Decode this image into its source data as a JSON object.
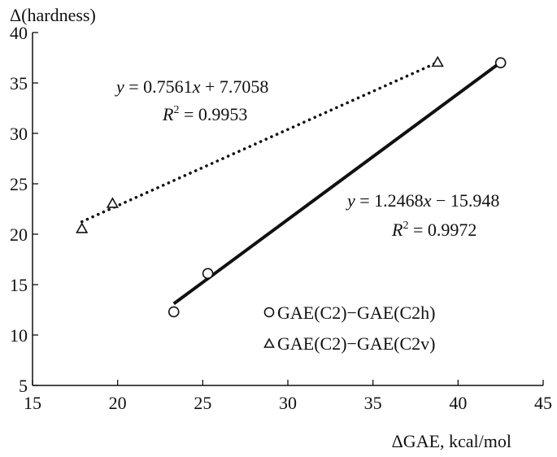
{
  "chart_data": {
    "type": "scatter",
    "xlabel": "ΔGAE, kcal/mol",
    "ylabel": "Δ(hardness)",
    "xlim": [
      15,
      45
    ],
    "ylim": [
      5,
      40
    ],
    "xticks": [
      15,
      20,
      25,
      30,
      35,
      40,
      45
    ],
    "yticks": [
      5,
      10,
      15,
      20,
      25,
      30,
      35,
      40
    ],
    "grid": false,
    "legend_position": "bottom-right",
    "series": [
      {
        "name": "GAE(C2)−GAE(C2h)",
        "marker": "circle",
        "line_style": "solid",
        "color": "#111111",
        "points": [
          {
            "x": 23.3,
            "y": 12.3
          },
          {
            "x": 25.3,
            "y": 16.1
          },
          {
            "x": 42.5,
            "y": 37.0
          }
        ],
        "fit_line": {
          "slope": 1.2468,
          "intercept": -15.948,
          "x_range": [
            23.3,
            42.5
          ]
        },
        "equation": {
          "lhs": "y",
          "rhs_a": " = 1.2468",
          "var": "x",
          "rhs_b": " − 15.948",
          "r2_label": "R",
          "r2_sup": "2",
          "r2_value": " = 0.9972"
        }
      },
      {
        "name": "GAE(C2)−GAE(C2v)",
        "marker": "triangle",
        "line_style": "dotted",
        "color": "#111111",
        "points": [
          {
            "x": 17.9,
            "y": 20.5
          },
          {
            "x": 19.7,
            "y": 23.0
          },
          {
            "x": 38.8,
            "y": 37.0
          }
        ],
        "fit_line": {
          "slope": 0.7561,
          "intercept": 7.7058,
          "x_range": [
            17.9,
            38.8
          ]
        },
        "equation": {
          "lhs": "y",
          "rhs_a": " = 0.7561",
          "var": "x",
          "rhs_b": " + 7.7058",
          "r2_label": "R",
          "r2_sup": "2",
          "r2_value": " = 0.9953"
        }
      }
    ],
    "legend": [
      {
        "marker": "circle",
        "label": "GAE(C2)−GAE(C2h)"
      },
      {
        "marker": "triangle",
        "label": "GAE(C2)−GAE(C2v)"
      }
    ]
  }
}
